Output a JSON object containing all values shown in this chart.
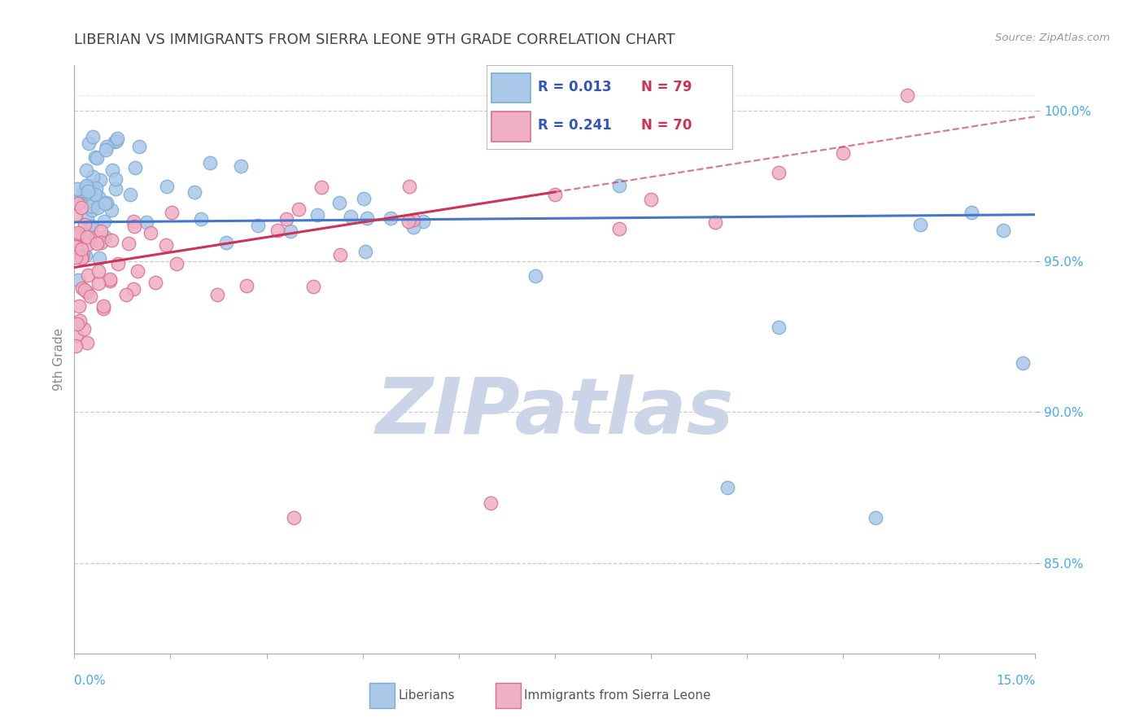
{
  "title": "LIBERIAN VS IMMIGRANTS FROM SIERRA LEONE 9TH GRADE CORRELATION CHART",
  "source": "Source: ZipAtlas.com",
  "ylabel": "9th Grade",
  "xlim": [
    0.0,
    15.0
  ],
  "ylim": [
    82.0,
    101.5
  ],
  "yticks": [
    85.0,
    90.0,
    95.0,
    100.0
  ],
  "ytick_labels": [
    "85.0%",
    "90.0%",
    "95.0%",
    "100.0%"
  ],
  "blue_color": "#aac8e8",
  "blue_edge": "#7aadd4",
  "pink_color": "#f0b0c4",
  "pink_edge": "#dc7090",
  "blue_line_color": "#4477cc",
  "pink_line_color": "#cc3355",
  "background_color": "#ffffff",
  "grid_color": "#cccccc",
  "title_color": "#444444",
  "watermark_color": "#ccd5e8",
  "legend_r_color": "#3355bb",
  "legend_n_color": "#cc3355",
  "blue_r": 0.013,
  "blue_n": 79,
  "pink_r": 0.241,
  "pink_n": 70,
  "blue_line_y_at_0": 96.3,
  "blue_line_y_at_15": 96.55,
  "pink_line_y_at_0": 94.8,
  "pink_line_y_at_15": 99.8,
  "pink_solid_end_x": 7.5
}
